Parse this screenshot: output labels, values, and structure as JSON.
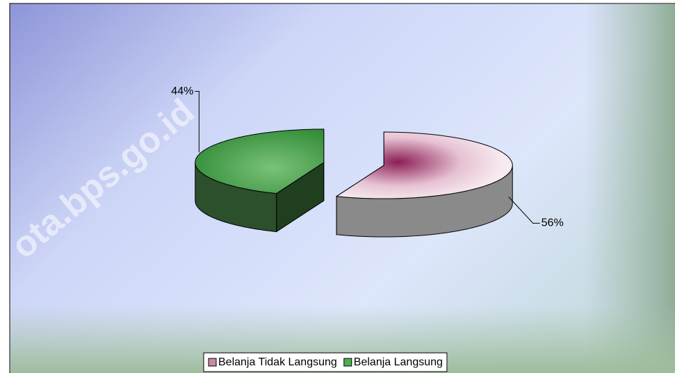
{
  "chart_data": {
    "type": "pie3d",
    "categories": [
      "Belanja Tidak Langsung",
      "Belanja Langsung"
    ],
    "values": [
      56,
      44
    ],
    "value_labels": [
      "56%",
      "44%"
    ],
    "colors": [
      "#c98aa8",
      "#4caf50"
    ],
    "legend": "bottom",
    "watermark": "ota.bps.go.id"
  }
}
